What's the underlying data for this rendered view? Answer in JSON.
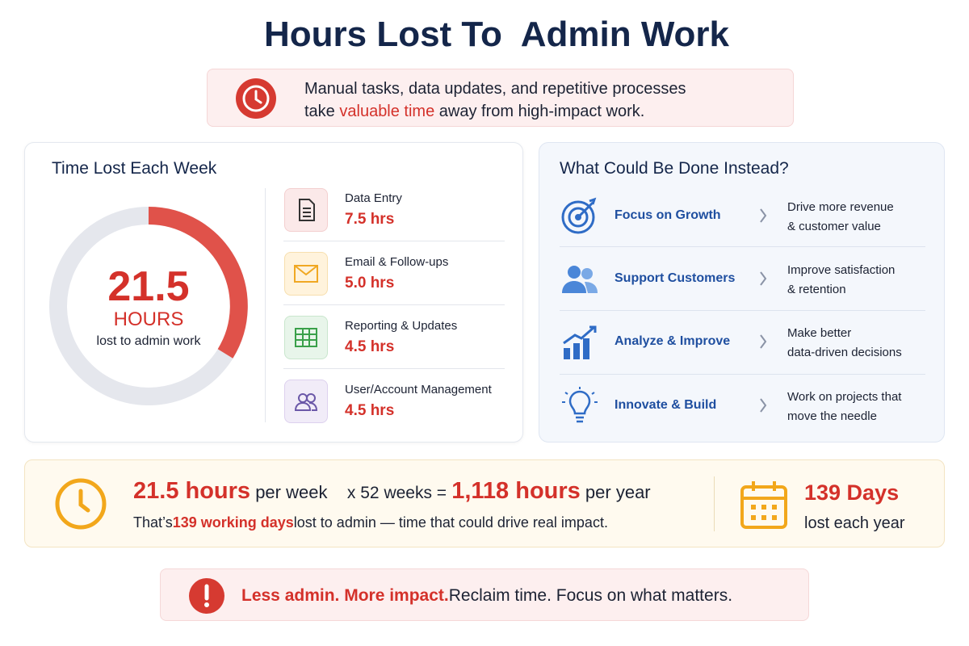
{
  "header": {
    "title": "Hours Lost To  Admin Work",
    "subtitle_line1": "Manual tasks, data updates, and repetitive processes",
    "subtitle_line2_start": "take",
    "subtitle_highlight": "valuable time",
    "subtitle_line2_end": "away from high-impact work."
  },
  "weekly": {
    "title": "Time Lost Each Week",
    "total": "21.5",
    "unit": "HOURS",
    "caption": "lost to admin work",
    "items": [
      {
        "label": "Data Entry",
        "value": "7.5 hrs"
      },
      {
        "label": "Email & Follow-ups",
        "value": "5.0 hrs"
      },
      {
        "label": "Reporting & Updates",
        "value": "4.5 hrs"
      },
      {
        "label": "User/Account Management",
        "value": "4.5 hrs"
      }
    ]
  },
  "instead": {
    "title": "What Could Be Done Instead?",
    "items": [
      {
        "title": "Focus on Growth",
        "lines": [
          "Drive more revenue",
          "& customer value"
        ]
      },
      {
        "title": "Support Customers",
        "lines": [
          "Improve satisfaction",
          "& retention"
        ]
      },
      {
        "title": "Analyze & Improve",
        "lines": [
          "Make better",
          "data-driven decisions"
        ]
      },
      {
        "title": "Innovate & Build",
        "lines": [
          "Work on projects that",
          "move the needle"
        ]
      }
    ]
  },
  "summary": {
    "weekly_hours": "21.5 hours",
    "per_week": "per week",
    "multiplier": "x 52 weeks =",
    "yearly_hours": "1,118 hours",
    "per_year": "per year",
    "line2_start": "That’s",
    "line2_highlight": "139 working days",
    "line2_end": "lost to admin — time that could drive real impact.",
    "days": "139 Days",
    "days_caption": "lost each year"
  },
  "footer": {
    "highlight": "Less admin. More impact.",
    "text": "Reclaim time. Focus on what matters."
  }
}
